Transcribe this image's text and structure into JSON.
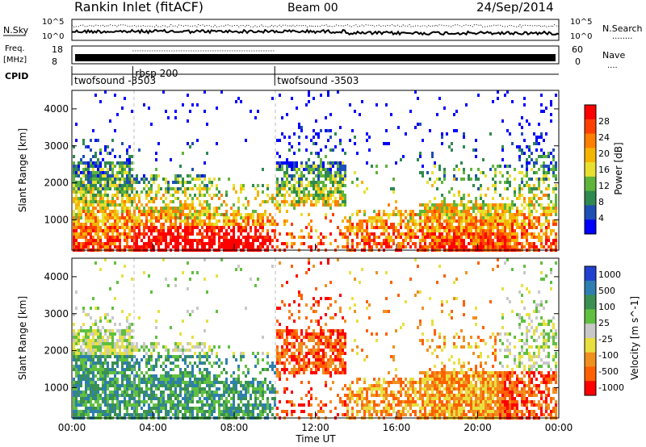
{
  "header": {
    "title": "Rankin Inlet (fitACF)",
    "beam": "Beam 00",
    "date": "24/Sep/2014"
  },
  "top_panels": {
    "nsky_label": "N.Sky",
    "nsearch_label": "N.Search",
    "nsearch_dots": "........",
    "noise_ticks_left": [
      "10^5",
      "10^0"
    ],
    "noise_ticks_right": [
      "10^5",
      "10^0"
    ],
    "freq_label_1": "Freq.",
    "freq_label_2": "[MHz]",
    "freq_ticks": [
      "18",
      "8"
    ],
    "nave_label": "Nave",
    "nave_dots": "....",
    "nave_ticks": [
      "60",
      "0"
    ],
    "cpid_label": "CPID",
    "cpid_segments": [
      {
        "label": "twofsound  -3503",
        "start_h": 0,
        "end_h": 3
      },
      {
        "label": "rbsp 200",
        "start_h": 3,
        "end_h": 10
      },
      {
        "label": "twofsound  -3503",
        "start_h": 10,
        "end_h": 24
      }
    ]
  },
  "colors": {
    "power_scale": [
      "#0000ff",
      "#1e4fb4",
      "#2e8a4e",
      "#5fb43c",
      "#e8e030",
      "#f5b400",
      "#ff8000",
      "#ff4000",
      "#ff0000"
    ],
    "velocity_scale": [
      "#2040d0",
      "#2e7fb0",
      "#3a9050",
      "#60c040",
      "#c8c8c8",
      "#e8e040",
      "#f09020",
      "#ff6000",
      "#ff0000"
    ]
  },
  "chart_data": [
    {
      "type": "heatmap",
      "name_hint": "power",
      "ylabel": "Slant Range [km]",
      "xlabel": "Time UT",
      "xlim": [
        0,
        24
      ],
      "ylim": [
        180,
        4500
      ],
      "x_ticks": [
        "00:00",
        "04:00",
        "08:00",
        "12:00",
        "16:00",
        "20:00",
        "00:00"
      ],
      "y_ticks": [
        "1000",
        "2000",
        "3000",
        "4000"
      ],
      "colorbar": {
        "label": "Power [dB]",
        "ticks": [
          "4",
          "8",
          "12",
          "16",
          "20",
          "24",
          "28"
        ],
        "range": [
          0,
          30
        ]
      }
    },
    {
      "type": "heatmap",
      "name_hint": "velocity",
      "ylabel": "Slant Range [km]",
      "xlabel": "Time UT",
      "xlim": [
        0,
        24
      ],
      "ylim": [
        180,
        4500
      ],
      "x_ticks": [
        "00:00",
        "04:00",
        "08:00",
        "12:00",
        "16:00",
        "20:00",
        "00:00"
      ],
      "y_ticks": [
        "1000",
        "2000",
        "3000",
        "4000"
      ],
      "colorbar": {
        "label": "Velocity [m s^-1]",
        "ticks": [
          "1000",
          "500",
          "100",
          "25",
          "-25",
          "-100",
          "-500",
          "-1000"
        ]
      }
    }
  ]
}
